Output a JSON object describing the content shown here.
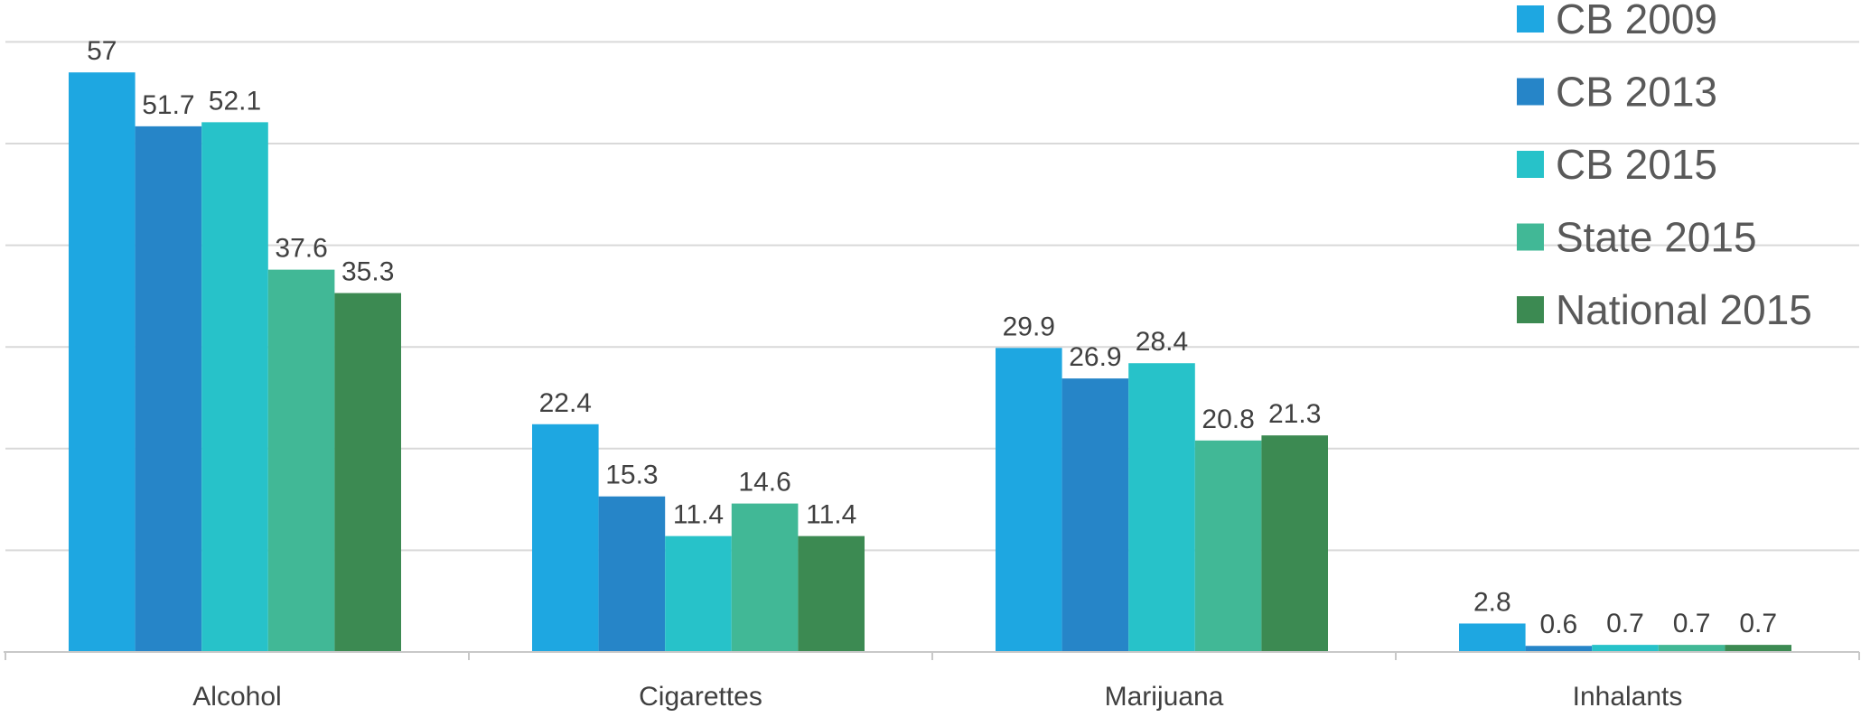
{
  "chart_data": {
    "type": "bar",
    "categories": [
      "Alcohol",
      "Cigarettes",
      "Marijuana",
      "Inhalants"
    ],
    "series": [
      {
        "name": "CB 2009",
        "color": "#1ea7e1",
        "values": [
          57,
          22.4,
          29.9,
          2.8
        ]
      },
      {
        "name": "CB 2013",
        "color": "#2685c8",
        "values": [
          51.7,
          15.3,
          26.9,
          0.6
        ]
      },
      {
        "name": "CB 2015",
        "color": "#27c2c9",
        "values": [
          52.1,
          11.4,
          28.4,
          0.7
        ]
      },
      {
        "name": "State 2015",
        "color": "#41b896",
        "values": [
          37.6,
          14.6,
          20.8,
          0.7
        ]
      },
      {
        "name": "National 2015",
        "color": "#3c8a52",
        "values": [
          35.3,
          11.4,
          21.3,
          0.7
        ]
      }
    ],
    "value_labels": [
      [
        "57",
        "22.4",
        "29.9",
        "2.8"
      ],
      [
        "51.7",
        "15.3",
        "26.9",
        "0.6"
      ],
      [
        "52.1",
        "11.4",
        "28.4",
        "0.7"
      ],
      [
        "37.6",
        "14.6",
        "20.8",
        "0.7"
      ],
      [
        "35.3",
        "11.4",
        "21.3",
        "0.7"
      ]
    ],
    "title": "",
    "xlabel": "",
    "ylabel": "",
    "ylim": [
      0,
      60
    ],
    "gridline_step": 10,
    "grid": true,
    "legend_position": "top-right",
    "data_labels": true
  }
}
